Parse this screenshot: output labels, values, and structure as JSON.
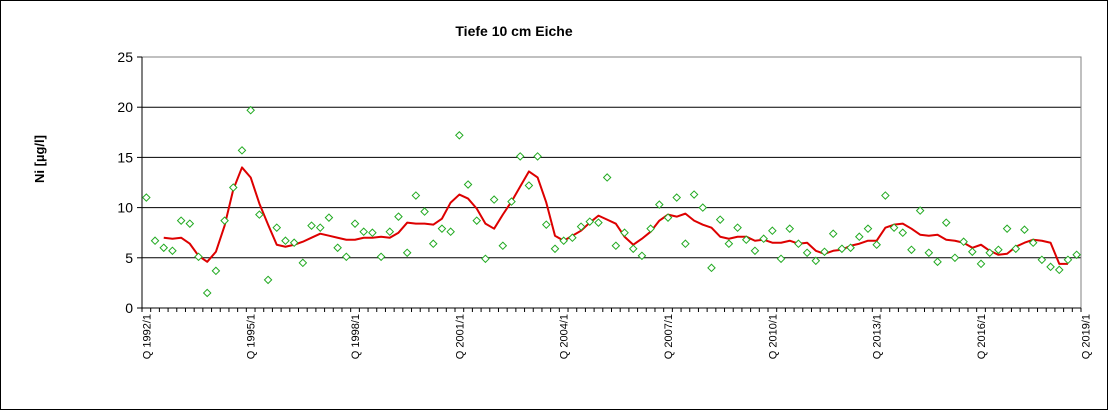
{
  "chart_data": {
    "type": "line",
    "title": "Tiefe  10 cm     Eiche",
    "xlabel": "",
    "ylabel": "Ni [µg/l]",
    "ylim": [
      0,
      25
    ],
    "yticks": [
      "0",
      "5",
      "10",
      "15",
      "20",
      "25"
    ],
    "grid": "horizontal",
    "legend": "none",
    "x_tick_labels": [
      "Q 1992/1",
      "Q 1995/1",
      "Q 1998/1",
      "Q 2001/1",
      "Q 2004/1",
      "Q 2007/1",
      "Q 2010/1",
      "Q 2013/1",
      "Q 2016/1",
      "Q 2019/1"
    ],
    "colors": {
      "measurement": "#22aa22",
      "trend": "#dd0000",
      "grid": "#000000",
      "plot_background": "#ffffff"
    },
    "series": [
      {
        "marker": "diamond-open",
        "values": [
          11.0,
          6.7,
          6.0,
          5.7,
          8.7,
          8.4,
          5.1,
          1.5,
          3.7,
          8.7,
          12.0,
          15.7,
          19.7,
          9.3,
          2.8,
          8.0,
          6.7,
          6.5,
          4.5,
          8.2,
          8.0,
          9.0,
          6.0,
          5.1,
          8.4,
          7.6,
          7.5,
          5.1,
          7.6,
          9.1,
          5.5,
          11.2,
          9.6,
          6.4,
          7.9,
          7.6,
          17.2,
          12.3,
          8.7,
          4.9,
          10.8,
          6.2,
          10.6,
          15.1,
          12.2,
          15.1,
          8.3,
          5.9,
          6.7,
          7.0,
          8.1,
          8.6,
          8.5,
          13.0,
          6.2,
          7.5,
          5.9,
          5.2,
          7.9,
          10.3,
          9.0,
          11.0,
          6.4,
          11.3,
          10.0,
          4.0,
          8.8,
          6.4,
          8.0,
          6.8,
          5.7,
          6.9,
          7.7,
          4.9,
          7.9,
          6.4,
          5.5,
          4.7,
          5.6,
          7.4,
          5.9,
          6.0,
          7.1,
          7.9,
          6.3,
          11.2,
          8.0,
          7.5,
          5.8,
          9.7,
          5.5,
          4.6,
          8.5,
          5.0,
          6.6,
          5.6,
          4.4,
          5.5,
          5.8,
          7.9,
          5.9,
          7.8,
          6.5,
          4.8,
          4.1,
          3.8,
          4.8,
          5.3
        ]
      },
      {
        "line": "solid",
        "values": [
          null,
          null,
          7.0,
          6.9,
          7.0,
          6.4,
          5.2,
          4.6,
          5.6,
          8.2,
          11.8,
          14.0,
          13.0,
          10.4,
          8.3,
          6.3,
          6.1,
          6.3,
          6.6,
          7.0,
          7.4,
          7.2,
          7.0,
          6.8,
          6.8,
          7.0,
          7.0,
          7.1,
          7.0,
          7.5,
          8.5,
          8.4,
          8.4,
          8.3,
          8.9,
          10.5,
          11.3,
          10.9,
          9.9,
          8.4,
          7.9,
          9.3,
          10.6,
          12.1,
          13.6,
          13.0,
          10.5,
          7.2,
          6.7,
          7.2,
          7.7,
          8.5,
          9.2,
          8.8,
          8.4,
          7.1,
          6.3,
          6.9,
          7.6,
          8.7,
          9.3,
          9.1,
          9.4,
          8.7,
          8.3,
          8.0,
          7.1,
          6.9,
          7.1,
          7.1,
          6.7,
          6.8,
          6.5,
          6.5,
          6.7,
          6.4,
          6.5,
          5.7,
          5.4,
          5.7,
          5.8,
          6.2,
          6.4,
          6.7,
          6.7,
          8.0,
          8.3,
          8.4,
          7.9,
          7.3,
          7.2,
          7.3,
          6.8,
          6.7,
          6.5,
          6.0,
          6.3,
          5.7,
          5.3,
          5.4,
          6.1,
          6.5,
          6.8,
          6.7,
          6.5,
          4.4,
          4.4,
          null
        ]
      }
    ]
  }
}
